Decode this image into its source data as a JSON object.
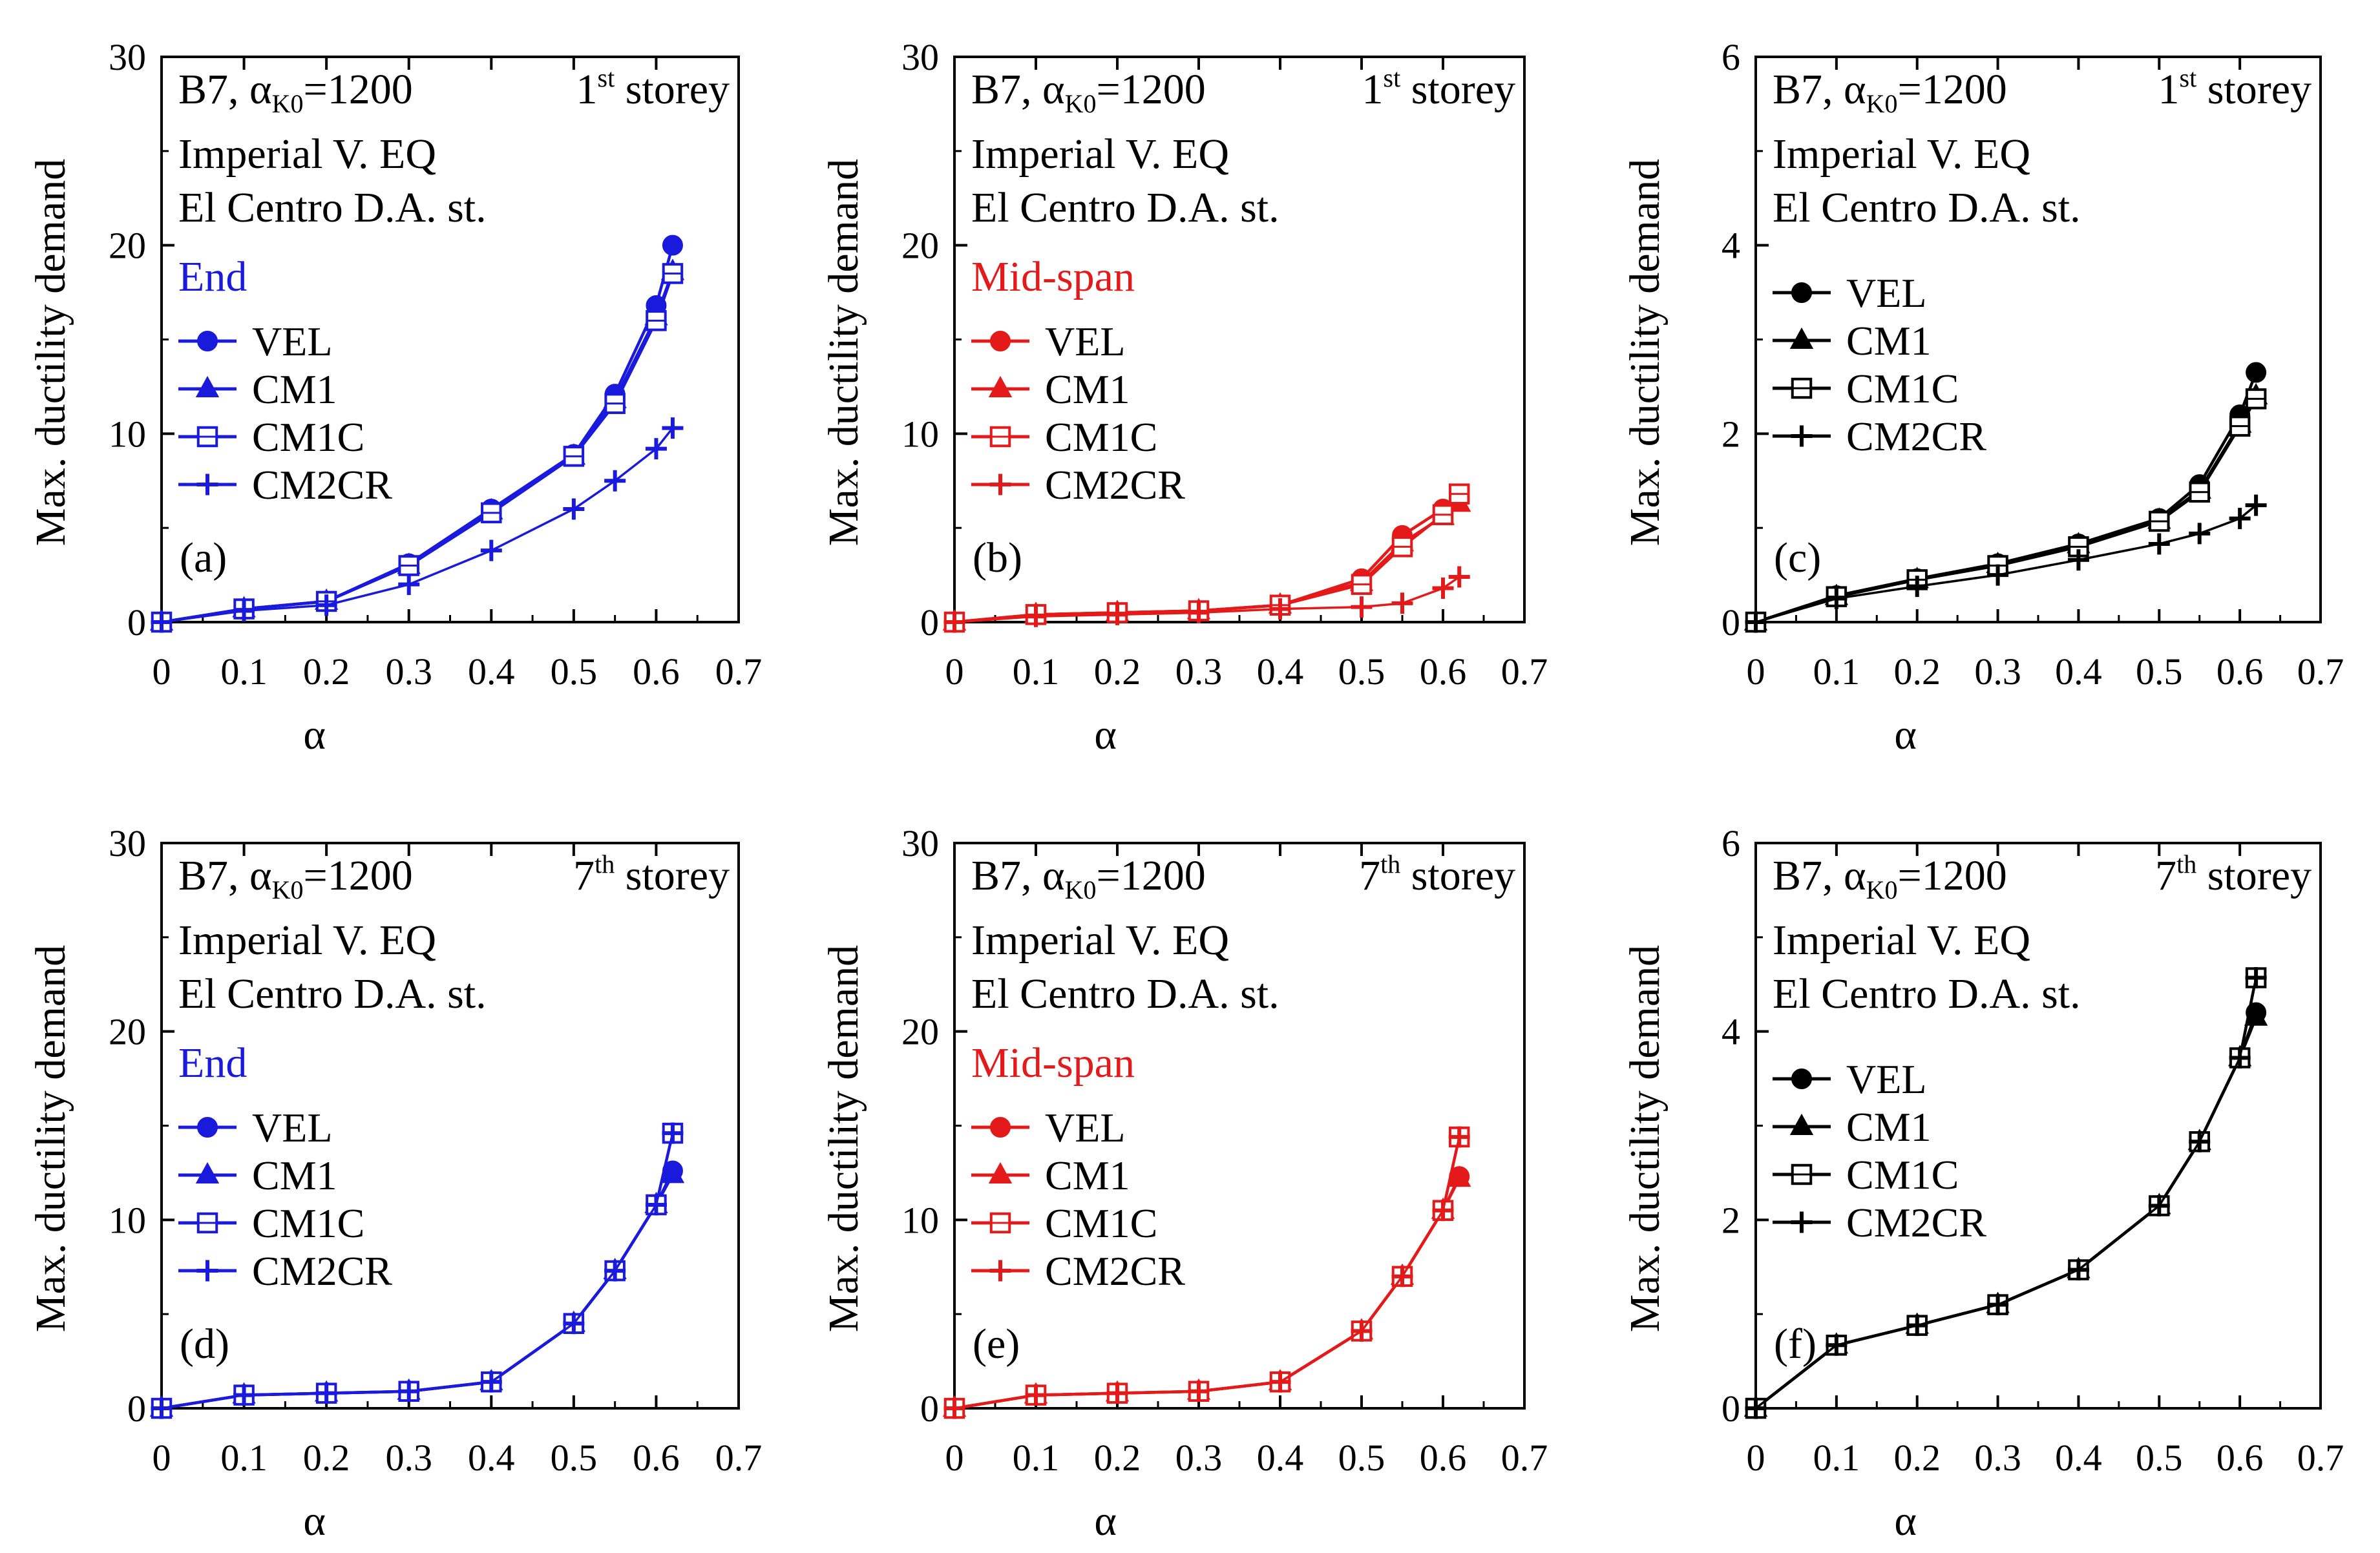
{
  "figure": {
    "title": "Max. ductility demand vs. alpha for B7 building, Imperial V. EQ"
  },
  "chart_data": [
    {
      "type": "line",
      "panel": "(a)",
      "color": "#1a1adc",
      "title_left_main": "B7, α",
      "title_left_sub": "K0",
      "title_left_tail": "=1200",
      "storey_num": "1",
      "storey_sup": "st",
      "storey_word": " storey",
      "line2": "Imperial V. EQ",
      "line3": "El Centro D.A. st.",
      "legend_title": "End",
      "xlabel": "α",
      "ylabel": "Max. ductility demand",
      "xlim": [
        0,
        0.7
      ],
      "ylim": [
        0,
        30
      ],
      "xticks": [
        0,
        0.1,
        0.2,
        0.3,
        0.4,
        0.5,
        0.6,
        0.7
      ],
      "xtick_labels": [
        "0",
        "0.1",
        "0.2",
        "0.3",
        "0.4",
        "0.5",
        "0.6",
        "0.7"
      ],
      "yticks": [
        0,
        10,
        20,
        30
      ],
      "ytick_labels": [
        "0",
        "10",
        "20",
        "30"
      ],
      "x": [
        0,
        0.1,
        0.2,
        0.3,
        0.4,
        0.5,
        0.55,
        0.6,
        0.62
      ],
      "series": [
        {
          "name": "VEL",
          "marker": "circle",
          "values": [
            0,
            0.7,
            1.1,
            3.1,
            6.0,
            8.9,
            12.1,
            16.8,
            20.0
          ]
        },
        {
          "name": "CM1",
          "marker": "triangle",
          "values": [
            0,
            0.7,
            1.1,
            3.0,
            5.9,
            8.8,
            11.8,
            16.2,
            18.6
          ]
        },
        {
          "name": "CM1C",
          "marker": "square",
          "values": [
            0,
            0.7,
            1.1,
            3.0,
            5.8,
            8.8,
            11.6,
            16.0,
            18.5
          ]
        },
        {
          "name": "CM2CR",
          "marker": "plus",
          "values": [
            0,
            0.6,
            0.9,
            2.0,
            3.8,
            6.0,
            7.5,
            9.2,
            10.3
          ]
        }
      ]
    },
    {
      "type": "line",
      "panel": "(b)",
      "color": "#e41a1a",
      "title_left_main": "B7, α",
      "title_left_sub": "K0",
      "title_left_tail": "=1200",
      "storey_num": "1",
      "storey_sup": "st",
      "storey_word": " storey",
      "line2": "Imperial V. EQ",
      "line3": "El Centro D.A. st.",
      "legend_title": "Mid-span",
      "xlabel": "α",
      "ylabel": "Max. ductility demand",
      "xlim": [
        0,
        0.7
      ],
      "ylim": [
        0,
        30
      ],
      "xticks": [
        0,
        0.1,
        0.2,
        0.3,
        0.4,
        0.5,
        0.6,
        0.7
      ],
      "xtick_labels": [
        "0",
        "0.1",
        "0.2",
        "0.3",
        "0.4",
        "0.5",
        "0.6",
        "0.7"
      ],
      "yticks": [
        0,
        10,
        20,
        30
      ],
      "ytick_labels": [
        "0",
        "10",
        "20",
        "30"
      ],
      "x": [
        0,
        0.1,
        0.2,
        0.3,
        0.4,
        0.5,
        0.55,
        0.6,
        0.62
      ],
      "series": [
        {
          "name": "VEL",
          "marker": "circle",
          "values": [
            0,
            0.4,
            0.5,
            0.6,
            0.9,
            2.3,
            4.6,
            6.0,
            6.6
          ]
        },
        {
          "name": "CM1",
          "marker": "triangle",
          "values": [
            0,
            0.4,
            0.5,
            0.6,
            0.9,
            2.1,
            4.2,
            5.6,
            6.3
          ]
        },
        {
          "name": "CM1C",
          "marker": "square",
          "values": [
            0,
            0.4,
            0.5,
            0.6,
            0.9,
            2.0,
            4.0,
            5.7,
            6.8
          ]
        },
        {
          "name": "CM2CR",
          "marker": "plus",
          "values": [
            0,
            0.3,
            0.4,
            0.5,
            0.7,
            0.8,
            1.0,
            1.8,
            2.4
          ]
        }
      ]
    },
    {
      "type": "line",
      "panel": "(c)",
      "color": "#000000",
      "title_left_main": "B7, α",
      "title_left_sub": "K0",
      "title_left_tail": "=1200",
      "storey_num": "1",
      "storey_sup": "st",
      "storey_word": " storey",
      "line2": "Imperial V. EQ",
      "line3": "El Centro D.A. st.",
      "legend_title": "",
      "xlabel": "α",
      "ylabel": "Max. ductility demand",
      "xlim": [
        0,
        0.7
      ],
      "ylim": [
        0,
        6
      ],
      "xticks": [
        0,
        0.1,
        0.2,
        0.3,
        0.4,
        0.5,
        0.6,
        0.7
      ],
      "xtick_labels": [
        "0",
        "0.1",
        "0.2",
        "0.3",
        "0.4",
        "0.5",
        "0.6",
        "0.7"
      ],
      "yticks": [
        0,
        2,
        4,
        6
      ],
      "ytick_labels": [
        "0",
        "2",
        "4",
        "6"
      ],
      "x": [
        0,
        0.1,
        0.2,
        0.3,
        0.4,
        0.5,
        0.55,
        0.6,
        0.62
      ],
      "series": [
        {
          "name": "VEL",
          "marker": "circle",
          "values": [
            0,
            0.28,
            0.46,
            0.62,
            0.83,
            1.1,
            1.46,
            2.2,
            2.65
          ]
        },
        {
          "name": "CM1",
          "marker": "triangle",
          "values": [
            0,
            0.27,
            0.45,
            0.61,
            0.82,
            1.08,
            1.4,
            2.1,
            2.4
          ]
        },
        {
          "name": "CM1C",
          "marker": "square",
          "values": [
            0,
            0.27,
            0.45,
            0.6,
            0.8,
            1.07,
            1.38,
            2.08,
            2.37
          ]
        },
        {
          "name": "CM2CR",
          "marker": "plus",
          "values": [
            0,
            0.25,
            0.38,
            0.5,
            0.66,
            0.83,
            0.94,
            1.1,
            1.24
          ]
        }
      ]
    },
    {
      "type": "line",
      "panel": "(d)",
      "color": "#1a1adc",
      "title_left_main": "B7, α",
      "title_left_sub": "K0",
      "title_left_tail": "=1200",
      "storey_num": "7",
      "storey_sup": "th",
      "storey_word": " storey",
      "line2": "Imperial V. EQ",
      "line3": "El Centro D.A. st.",
      "legend_title": "End",
      "xlabel": "α",
      "ylabel": "Max. ductility demand",
      "xlim": [
        0,
        0.7
      ],
      "ylim": [
        0,
        30
      ],
      "xticks": [
        0,
        0.1,
        0.2,
        0.3,
        0.4,
        0.5,
        0.6,
        0.7
      ],
      "xtick_labels": [
        "0",
        "0.1",
        "0.2",
        "0.3",
        "0.4",
        "0.5",
        "0.6",
        "0.7"
      ],
      "yticks": [
        0,
        10,
        20,
        30
      ],
      "ytick_labels": [
        "0",
        "10",
        "20",
        "30"
      ],
      "x": [
        0,
        0.1,
        0.2,
        0.3,
        0.4,
        0.5,
        0.55,
        0.6,
        0.62
      ],
      "series": [
        {
          "name": "VEL",
          "marker": "circle",
          "values": [
            0,
            0.7,
            0.8,
            0.9,
            1.4,
            4.5,
            7.3,
            10.8,
            12.6
          ]
        },
        {
          "name": "CM1",
          "marker": "triangle",
          "values": [
            0,
            0.7,
            0.8,
            0.9,
            1.4,
            4.5,
            7.3,
            10.8,
            12.4
          ]
        },
        {
          "name": "CM1C",
          "marker": "square",
          "values": [
            0,
            0.7,
            0.8,
            0.9,
            1.4,
            4.5,
            7.3,
            10.8,
            14.6
          ]
        },
        {
          "name": "CM2CR",
          "marker": "plus",
          "values": [
            0,
            0.7,
            0.8,
            0.9,
            1.4,
            4.5,
            7.3,
            10.8,
            14.6
          ]
        }
      ]
    },
    {
      "type": "line",
      "panel": "(e)",
      "color": "#e41a1a",
      "title_left_main": "B7, α",
      "title_left_sub": "K0",
      "title_left_tail": "=1200",
      "storey_num": "7",
      "storey_sup": "th",
      "storey_word": " storey",
      "line2": "Imperial V. EQ",
      "line3": "El Centro D.A. st.",
      "legend_title": "Mid-span",
      "xlabel": "α",
      "ylabel": "Max. ductility demand",
      "xlim": [
        0,
        0.7
      ],
      "ylim": [
        0,
        30
      ],
      "xticks": [
        0,
        0.1,
        0.2,
        0.3,
        0.4,
        0.5,
        0.6,
        0.7
      ],
      "xtick_labels": [
        "0",
        "0.1",
        "0.2",
        "0.3",
        "0.4",
        "0.5",
        "0.6",
        "0.7"
      ],
      "yticks": [
        0,
        10,
        20,
        30
      ],
      "ytick_labels": [
        "0",
        "10",
        "20",
        "30"
      ],
      "x": [
        0,
        0.1,
        0.2,
        0.3,
        0.4,
        0.5,
        0.55,
        0.6,
        0.62
      ],
      "series": [
        {
          "name": "VEL",
          "marker": "circle",
          "values": [
            0,
            0.7,
            0.8,
            0.9,
            1.4,
            4.1,
            7.0,
            10.5,
            12.3
          ]
        },
        {
          "name": "CM1",
          "marker": "triangle",
          "values": [
            0,
            0.7,
            0.8,
            0.9,
            1.4,
            4.1,
            7.0,
            10.5,
            12.2
          ]
        },
        {
          "name": "CM1C",
          "marker": "square",
          "values": [
            0,
            0.7,
            0.8,
            0.9,
            1.4,
            4.1,
            7.0,
            10.5,
            14.4
          ]
        },
        {
          "name": "CM2CR",
          "marker": "plus",
          "values": [
            0,
            0.7,
            0.8,
            0.9,
            1.4,
            4.1,
            7.0,
            10.5,
            14.4
          ]
        }
      ]
    },
    {
      "type": "line",
      "panel": "(f)",
      "color": "#000000",
      "title_left_main": "B7, α",
      "title_left_sub": "K0",
      "title_left_tail": "=1200",
      "storey_num": "7",
      "storey_sup": "th",
      "storey_word": " storey",
      "line2": "Imperial V. EQ",
      "line3": "El Centro D.A. st.",
      "legend_title": "",
      "xlabel": "α",
      "ylabel": "Max. ductility demand",
      "xlim": [
        0,
        0.7
      ],
      "ylim": [
        0,
        6
      ],
      "xticks": [
        0,
        0.1,
        0.2,
        0.3,
        0.4,
        0.5,
        0.6,
        0.7
      ],
      "xtick_labels": [
        "0",
        "0.1",
        "0.2",
        "0.3",
        "0.4",
        "0.5",
        "0.6",
        "0.7"
      ],
      "yticks": [
        0,
        2,
        4,
        6
      ],
      "ytick_labels": [
        "0",
        "2",
        "4",
        "6"
      ],
      "x": [
        0,
        0.1,
        0.2,
        0.3,
        0.4,
        0.5,
        0.55,
        0.6,
        0.62
      ],
      "series": [
        {
          "name": "VEL",
          "marker": "circle",
          "values": [
            0,
            0.67,
            0.88,
            1.1,
            1.47,
            2.15,
            2.83,
            3.72,
            4.2
          ]
        },
        {
          "name": "CM1",
          "marker": "triangle",
          "values": [
            0,
            0.67,
            0.88,
            1.1,
            1.47,
            2.15,
            2.83,
            3.72,
            4.15
          ]
        },
        {
          "name": "CM1C",
          "marker": "square",
          "values": [
            0,
            0.67,
            0.88,
            1.1,
            1.47,
            2.15,
            2.83,
            3.72,
            4.57
          ]
        },
        {
          "name": "CM2CR",
          "marker": "plus",
          "values": [
            0,
            0.67,
            0.88,
            1.1,
            1.47,
            2.15,
            2.83,
            3.72,
            4.57
          ]
        }
      ]
    }
  ]
}
